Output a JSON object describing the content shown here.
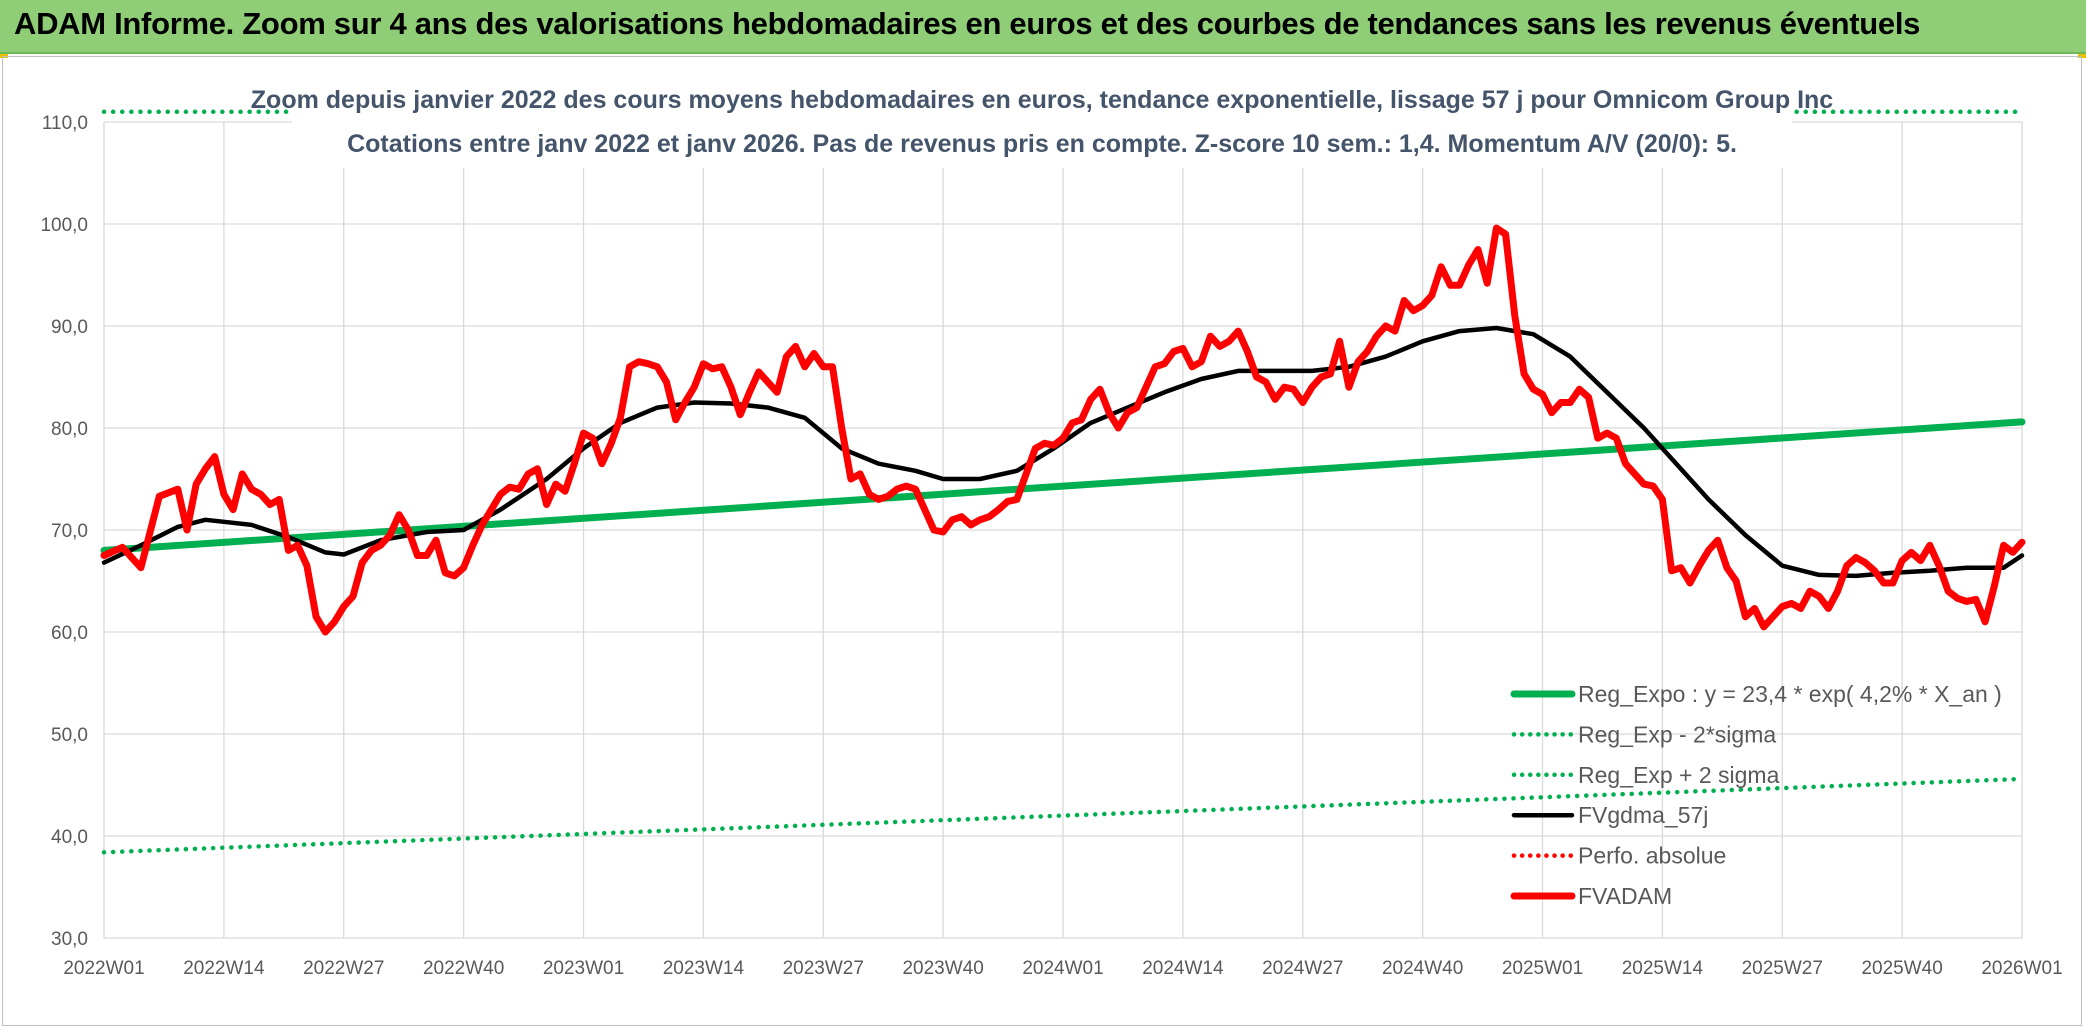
{
  "header": {
    "title": "ADAM Informe. Zoom sur 4 ans des valorisations hebdomadaires en euros et des courbes de tendances sans les revenus éventuels"
  },
  "chart_data": {
    "type": "line",
    "title": "Zoom depuis janvier 2022 des cours moyens hebdomadaires en euros, tendance exponentielle, lissage 57 j pour Omnicom Group Inc",
    "subtitle": "Cotations entre janv 2022 et janv 2026. Pas de revenus pris en compte. Z-score 10 sem.: 1,4. Momentum A/V (20/0): 5.",
    "xlabel": "",
    "ylabel": "",
    "ylim": [
      30,
      110
    ],
    "x_range": [
      0,
      208
    ],
    "yticks": [
      "30,0",
      "40,0",
      "50,0",
      "60,0",
      "70,0",
      "80,0",
      "90,0",
      "100,0",
      "110,0"
    ],
    "ytick_values": [
      30,
      40,
      50,
      60,
      70,
      80,
      90,
      100,
      110
    ],
    "xtick_labels": [
      "2022W01",
      "2022W14",
      "2022W27",
      "2022W40",
      "2023W01",
      "2023W14",
      "2023W27",
      "2023W40",
      "2024W01",
      "2024W14",
      "2024W27",
      "2024W40",
      "2025W01",
      "2025W14",
      "2025W27",
      "2025W40",
      "2026W01"
    ],
    "xtick_positions": [
      0,
      13,
      26,
      39,
      52,
      65,
      78,
      91,
      104,
      117,
      130,
      143,
      156,
      169,
      182,
      195,
      208
    ],
    "gridlines": true,
    "legend_position": "bottom-right",
    "series": [
      {
        "name": "Reg_Expo : y = 23,4 * exp( 4,2% *  X_an )",
        "color": "#00b050",
        "style": "solid-thick",
        "x": [
          0,
          208
        ],
        "values": [
          68.0,
          80.6
        ]
      },
      {
        "name": "Reg_Exp - 2*sigma",
        "color": "#00b050",
        "style": "dotted",
        "x": [
          0,
          208
        ],
        "values": [
          38.4,
          45.6
        ]
      },
      {
        "name": "Reg_Exp + 2 sigma",
        "color": "#00b050",
        "style": "dotted",
        "x": [
          0,
          208
        ],
        "values": [
          111.0,
          111.0
        ]
      },
      {
        "name": "FVgdma_57j",
        "color": "#000000",
        "style": "solid",
        "x": [
          0,
          4,
          8,
          11,
          13,
          16,
          20,
          24,
          26,
          30,
          35,
          39,
          43,
          48,
          52,
          56,
          60,
          64,
          68,
          72,
          76,
          80,
          84,
          88,
          91,
          95,
          99,
          103,
          107,
          111,
          115,
          119,
          123,
          127,
          131,
          135,
          139,
          143,
          147,
          151,
          155,
          159,
          163,
          167,
          170,
          174,
          178,
          182,
          186,
          190,
          194,
          198,
          202,
          206,
          208
        ],
        "values": [
          66.8,
          68.5,
          70.3,
          71.0,
          70.8,
          70.5,
          69.3,
          67.8,
          67.6,
          69.0,
          69.8,
          70.0,
          72.0,
          75.0,
          78.0,
          80.5,
          82.0,
          82.5,
          82.4,
          82.0,
          81.0,
          78.0,
          76.5,
          75.8,
          75.0,
          75.0,
          75.8,
          78.0,
          80.5,
          82.0,
          83.5,
          84.8,
          85.6,
          85.6,
          85.6,
          86.0,
          87.0,
          88.5,
          89.5,
          89.8,
          89.2,
          87.0,
          83.5,
          80.0,
          77.0,
          73.0,
          69.5,
          66.5,
          65.6,
          65.5,
          65.8,
          66.0,
          66.3,
          66.3,
          67.5
        ]
      },
      {
        "name": "Perfo. absolue",
        "color": "#ff0000",
        "style": "dotted",
        "x": [],
        "values": []
      },
      {
        "name": "FVADAM",
        "color": "#ff0000",
        "style": "solid-thick",
        "x": [
          0,
          2,
          4,
          6,
          8,
          9,
          10,
          11,
          12,
          13,
          14,
          15,
          16,
          17,
          18,
          19,
          20,
          21,
          22,
          23,
          24,
          25,
          26,
          27,
          28,
          29,
          30,
          31,
          32,
          33,
          34,
          35,
          36,
          37,
          38,
          39,
          40,
          41,
          42,
          43,
          44,
          45,
          46,
          47,
          48,
          49,
          50,
          51,
          52,
          53,
          54,
          55,
          56,
          57,
          58,
          59,
          60,
          61,
          62,
          63,
          64,
          65,
          66,
          67,
          68,
          69,
          70,
          71,
          72,
          73,
          74,
          75,
          76,
          77,
          78,
          79,
          80,
          81,
          82,
          83,
          84,
          85,
          86,
          87,
          88,
          89,
          90,
          91,
          92,
          93,
          94,
          95,
          96,
          97,
          98,
          99,
          100,
          101,
          102,
          103,
          104,
          105,
          106,
          107,
          108,
          109,
          110,
          111,
          112,
          113,
          114,
          115,
          116,
          117,
          118,
          119,
          120,
          121,
          122,
          123,
          124,
          125,
          126,
          127,
          128,
          129,
          130,
          131,
          132,
          133,
          134,
          135,
          136,
          137,
          138,
          139,
          140,
          141,
          142,
          143,
          144,
          145,
          146,
          147,
          148,
          149,
          150,
          151,
          152,
          153,
          154,
          155,
          156,
          157,
          158,
          159,
          160,
          161,
          162,
          163,
          164,
          165,
          166,
          167,
          168,
          169,
          170,
          171,
          172,
          173,
          174,
          175,
          176,
          177,
          178,
          179,
          180,
          181,
          182,
          183,
          184,
          185,
          186,
          187,
          188,
          189,
          190,
          191,
          192,
          193,
          194,
          195,
          196,
          197,
          198,
          199,
          200,
          201,
          202,
          203,
          204,
          205,
          206,
          207,
          208
        ],
        "values": [
          67.5,
          68.3,
          66.3,
          73.3,
          74.0,
          70.0,
          74.5,
          76.0,
          77.2,
          73.5,
          72.0,
          75.5,
          74.0,
          73.5,
          72.5,
          73.0,
          68.0,
          68.5,
          66.5,
          61.5,
          60.0,
          61.0,
          62.5,
          63.5,
          66.8,
          68.0,
          68.5,
          69.5,
          71.5,
          70.0,
          67.5,
          67.5,
          69.0,
          65.8,
          65.5,
          66.3,
          68.5,
          70.5,
          72.0,
          73.5,
          74.2,
          74.0,
          75.5,
          76.0,
          72.5,
          74.5,
          73.8,
          76.5,
          79.5,
          79.0,
          76.5,
          78.5,
          81.0,
          86.0,
          86.5,
          86.3,
          86.0,
          84.5,
          80.8,
          82.5,
          84.0,
          86.3,
          85.8,
          86.0,
          84.0,
          81.3,
          83.5,
          85.5,
          84.5,
          83.5,
          87.0,
          88.0,
          86.0,
          87.3,
          86.0,
          86.0,
          80.0,
          75.0,
          75.5,
          73.5,
          73.0,
          73.3,
          74.0,
          74.3,
          74.0,
          72.0,
          70.0,
          69.8,
          71.0,
          71.3,
          70.5,
          71.0,
          71.3,
          72.0,
          72.8,
          73.0,
          75.5,
          78.0,
          78.5,
          78.3,
          79.0,
          80.5,
          80.8,
          82.8,
          83.8,
          81.5,
          80.0,
          81.5,
          82.0,
          84.0,
          86.0,
          86.3,
          87.5,
          87.8,
          86.0,
          86.5,
          89.0,
          88.0,
          88.5,
          89.5,
          87.5,
          85.0,
          84.5,
          82.8,
          84.0,
          83.8,
          82.5,
          84.0,
          85.0,
          85.3,
          88.5,
          84.0,
          86.5,
          87.5,
          89.0,
          90.0,
          89.5,
          92.5,
          91.5,
          92.0,
          93.0,
          95.8,
          94.0,
          94.0,
          96.0,
          97.5,
          94.2,
          99.6,
          99.0,
          91.0,
          85.3,
          83.8,
          83.3,
          81.5,
          82.5,
          82.5,
          83.8,
          83.0,
          79.0,
          79.5,
          79.0,
          76.5,
          75.5,
          74.5,
          74.3,
          73.0,
          66.0,
          66.3,
          64.8,
          66.5,
          68.0,
          69.0,
          66.3,
          65.0,
          61.5,
          62.3,
          60.5,
          61.5,
          62.5,
          62.8,
          62.3,
          64.0,
          63.5,
          62.3,
          64.0,
          66.5,
          67.3,
          66.8,
          66.0,
          64.8,
          64.8,
          67.0,
          67.8,
          67.0,
          68.5,
          66.5,
          64.0,
          63.3,
          63.0,
          63.2,
          61.0,
          64.5,
          68.5,
          67.8,
          68.8
        ]
      }
    ]
  }
}
